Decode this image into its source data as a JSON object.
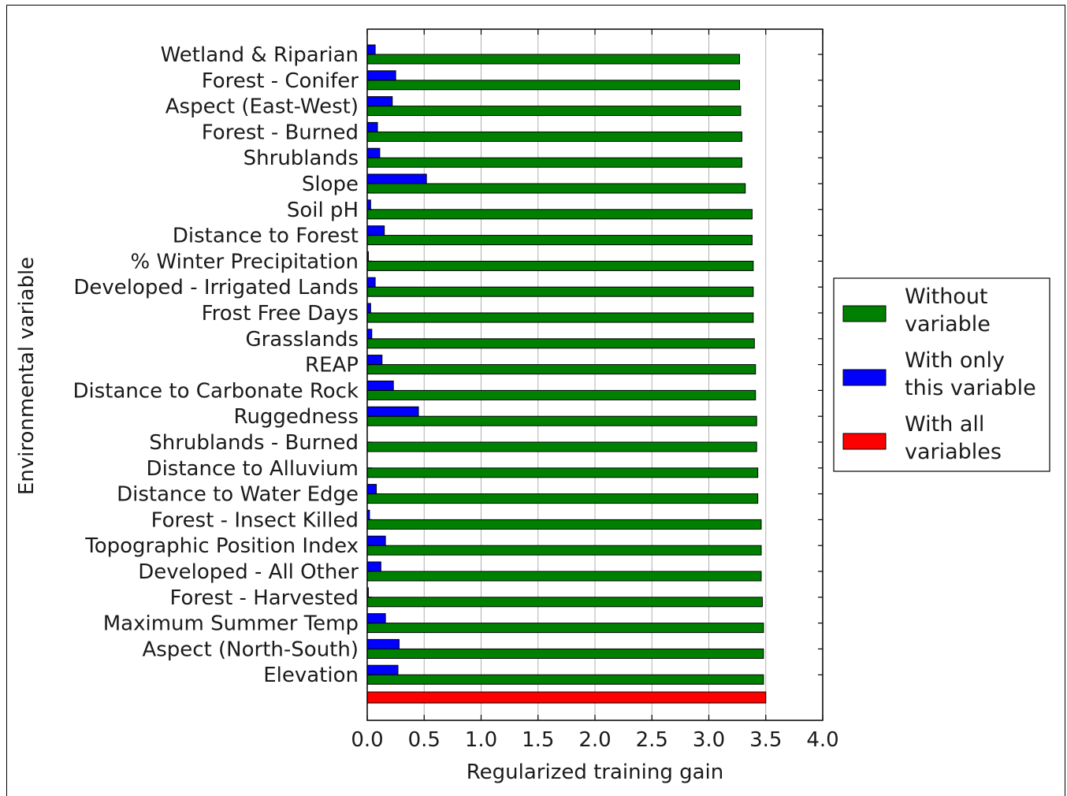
{
  "chart_data": {
    "type": "bar",
    "orientation": "horizontal",
    "xlabel": "Regularized training gain",
    "ylabel": "Environmental variable",
    "xlim": [
      0,
      4
    ],
    "xticks": [
      "0.0",
      "0.5",
      "1.0",
      "1.5",
      "2.0",
      "2.5",
      "3.0",
      "3.5",
      "4.0"
    ],
    "grid": "vertical",
    "legend_position": "right",
    "categories": [
      "Wetland & Riparian",
      "Forest - Conifer",
      "Aspect (East-West)",
      "Forest - Burned",
      "Shrublands",
      "Slope",
      "Soil pH",
      "Distance to Forest",
      "% Winter Precipitation",
      "Developed - Irrigated Lands",
      "Frost Free Days",
      "Grasslands",
      "REAP",
      "Distance to Carbonate Rock",
      "Ruggedness",
      "Shrublands - Burned",
      "Distance to Alluvium",
      "Distance to Water Edge",
      "Forest - Insect Killed",
      "Topographic Position Index",
      "Developed - All Other",
      "Forest - Harvested",
      "Maximum Summer Temp",
      "Aspect (North-South)",
      "Elevation"
    ],
    "series": [
      {
        "name": "Without variable",
        "color": "#008000",
        "values": [
          3.27,
          3.27,
          3.28,
          3.29,
          3.29,
          3.32,
          3.38,
          3.38,
          3.39,
          3.39,
          3.39,
          3.4,
          3.41,
          3.41,
          3.42,
          3.42,
          3.43,
          3.43,
          3.46,
          3.46,
          3.46,
          3.47,
          3.48,
          3.48,
          3.48
        ]
      },
      {
        "name": "With only this variable",
        "color": "#0000ff",
        "values": [
          0.07,
          0.25,
          0.22,
          0.09,
          0.11,
          0.52,
          0.03,
          0.15,
          0.01,
          0.07,
          0.03,
          0.04,
          0.13,
          0.23,
          0.45,
          0.0,
          0.0,
          0.08,
          0.02,
          0.16,
          0.12,
          0.01,
          0.16,
          0.28,
          0.27
        ]
      }
    ],
    "all_variables": {
      "name": "With all variables",
      "color": "#ff0000",
      "value": 3.5
    },
    "legend": [
      {
        "line1": "Without",
        "line2": "variable",
        "color": "#008000"
      },
      {
        "line1": "With only",
        "line2": "this variable",
        "color": "#0000ff"
      },
      {
        "line1": "With all",
        "line2": "variables",
        "color": "#ff0000"
      }
    ]
  }
}
